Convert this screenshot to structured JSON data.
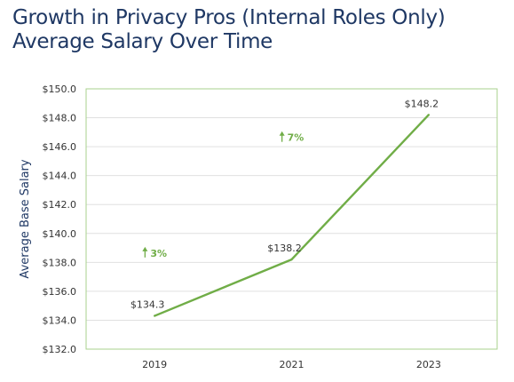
{
  "title_lines": [
    "Growth in Privacy Pros (Internal Roles Only)",
    "Average Salary Over Time"
  ],
  "colors": {
    "title": "#1f3864",
    "text": "#333333",
    "line": "#70ad47",
    "plot_border": "#a9d18e",
    "grid": "#e0e0e0",
    "annotation": "#70ad47"
  },
  "chart_data": {
    "type": "line",
    "title": "Growth in Privacy Pros (Internal Roles Only) Average Salary Over Time",
    "xlabel": "",
    "ylabel": "Average Base Salary",
    "categories": [
      "2019",
      "2021",
      "2023"
    ],
    "series": [
      {
        "values": [
          134.3,
          138.2,
          148.2
        ]
      }
    ],
    "data_labels": [
      "$134.3",
      "$138.2",
      "$148.2"
    ],
    "ylim": [
      132.0,
      150.0
    ],
    "y_ticks": [
      132.0,
      134.0,
      136.0,
      138.0,
      140.0,
      142.0,
      144.0,
      146.0,
      148.0,
      150.0
    ],
    "y_tick_labels": [
      "$132.0",
      "$134.0",
      "$136.0",
      "$138.0",
      "$140.0",
      "$142.0",
      "$144.0",
      "$146.0",
      "$148.0",
      "$150.0"
    ],
    "grid": true,
    "legend": "none",
    "growth_annotations": [
      {
        "text": "3%",
        "between": [
          "2019",
          "2021"
        ]
      },
      {
        "text": "7%",
        "between": [
          "2021",
          "2023"
        ]
      }
    ]
  }
}
